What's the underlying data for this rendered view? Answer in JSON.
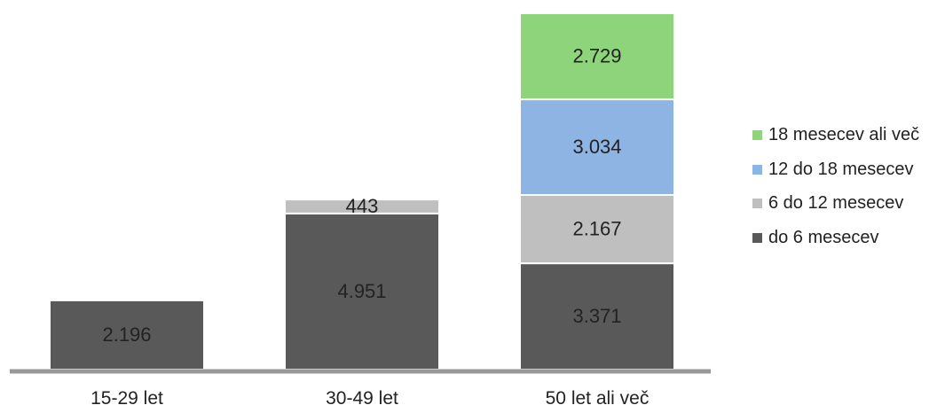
{
  "chart_data": {
    "type": "bar",
    "stacked": true,
    "categories": [
      "15-29 let",
      "30-49 let",
      "50 let ali več"
    ],
    "series": [
      {
        "name": "do 6 mesecev",
        "color": "#595959",
        "values": [
          2196,
          4951,
          3371
        ],
        "labels": [
          "2.196",
          "4.951",
          "3.371"
        ]
      },
      {
        "name": "6 do 12 mesecev",
        "color": "#bfbfbf",
        "values": [
          null,
          443,
          2167
        ],
        "labels": [
          "",
          "443",
          "2.167"
        ]
      },
      {
        "name": "12 do 18 mesecev",
        "color": "#8eb4e3",
        "values": [
          null,
          null,
          3034
        ],
        "labels": [
          "",
          "",
          "3.034"
        ]
      },
      {
        "name": "18 mesecev ali več",
        "color": "#8dd47b",
        "values": [
          null,
          null,
          2729
        ],
        "labels": [
          "",
          "",
          "2.729"
        ]
      }
    ],
    "ylim": [
      0,
      11301
    ],
    "legend_position": "right",
    "grid": false,
    "axis_color": "#999999"
  }
}
